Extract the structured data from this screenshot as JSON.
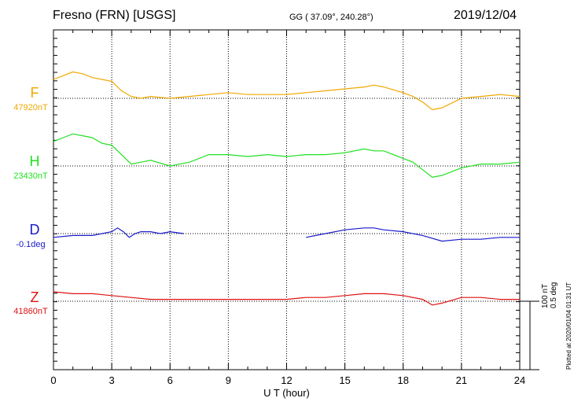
{
  "header": {
    "title": "Fresno (FRN)  [USGS]",
    "coords": "GG ( 37.09°, 240.28°)",
    "date": "2019/12/04"
  },
  "scale_note": [
    "100 nT",
    "0.5 deg"
  ],
  "plotted_note": "Plotted at 2020/01/04 01:31 UT",
  "chart_data": {
    "type": "line",
    "title": "Fresno (FRN)  [USGS]",
    "xlabel": "U T (hour)",
    "ylabel": "",
    "xlim": [
      0,
      24
    ],
    "xticks": [
      "0",
      "3",
      "6",
      "9",
      "12",
      "15",
      "18",
      "21",
      "24"
    ],
    "grid": true,
    "series": [
      {
        "name": "F",
        "baseline_label": "47920nT",
        "color": "#f0a800",
        "x": [
          0,
          0.5,
          1,
          1.5,
          2,
          2.5,
          3,
          3.5,
          4,
          4.5,
          5,
          6,
          7,
          8,
          9,
          10,
          11,
          12,
          13,
          14,
          15,
          16,
          16.5,
          17,
          18,
          18.5,
          19,
          19.5,
          20,
          21,
          22,
          23,
          24
        ],
        "values": [
          10,
          12,
          14,
          13,
          11,
          10,
          9,
          4,
          1,
          0,
          1,
          0,
          1,
          2,
          3,
          2,
          2,
          2,
          3,
          4,
          5,
          6,
          7,
          6,
          3,
          1,
          -2,
          -6,
          -5,
          0,
          1,
          2,
          1
        ]
      },
      {
        "name": "H",
        "baseline_label": "23430nT",
        "color": "#22e022",
        "x": [
          0,
          0.5,
          1,
          1.5,
          2,
          2.5,
          3,
          3.5,
          4,
          4.5,
          5,
          6,
          7,
          8,
          9,
          10,
          11,
          12,
          13,
          14,
          15,
          16,
          16.5,
          17,
          18,
          18.5,
          19,
          19.5,
          20,
          21,
          22,
          23,
          24
        ],
        "values": [
          13,
          15,
          17,
          16,
          15,
          12,
          11,
          6,
          1,
          2,
          3,
          0,
          2,
          6,
          6,
          5,
          6,
          5,
          6,
          6,
          7,
          9,
          8,
          8,
          4,
          2,
          -2,
          -6,
          -5,
          -1,
          1,
          1,
          2
        ]
      },
      {
        "name": "D",
        "baseline_label": "-0.1deg",
        "color": "#1a1acc",
        "x": [
          0,
          1,
          2,
          3,
          3.3,
          3.6,
          3.9,
          4.2,
          4.5,
          5,
          5.5,
          6,
          6.7,
          null,
          13,
          13.5,
          14,
          15,
          16,
          16.5,
          17,
          18,
          19,
          20,
          21,
          22,
          23,
          24
        ],
        "values": [
          -2,
          -1,
          -1,
          1,
          3,
          1,
          -2,
          0,
          1,
          1,
          0,
          1,
          0,
          null,
          -2,
          -1,
          0,
          2,
          3,
          3,
          2,
          1,
          -1,
          -4,
          -3,
          -3,
          -2,
          -2
        ]
      },
      {
        "name": "Z",
        "baseline_label": "41860nT",
        "color": "#e01010",
        "x": [
          0,
          1,
          2,
          3,
          4,
          5,
          6,
          8,
          10,
          12,
          13,
          14,
          15,
          16,
          17,
          18,
          19,
          19.5,
          20,
          21,
          22,
          23,
          24
        ],
        "values": [
          5,
          4,
          4,
          3,
          2,
          1,
          1,
          1,
          1,
          1,
          2,
          2,
          3,
          4,
          4,
          3,
          1,
          -2,
          -1,
          2,
          2,
          1,
          1
        ]
      }
    ]
  }
}
